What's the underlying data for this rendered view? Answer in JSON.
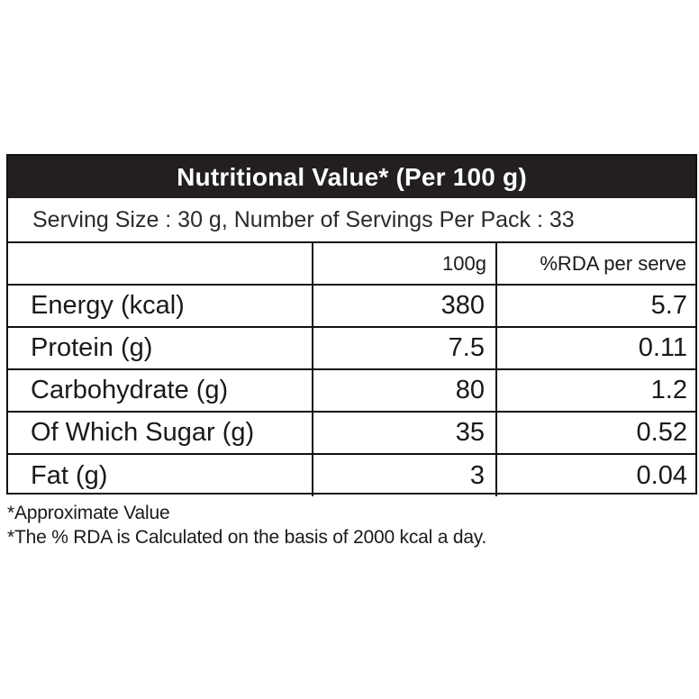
{
  "panel": {
    "title": "Nutritional Value* (Per 100 g)",
    "serving_line": "Serving Size :  30 g, Number of Servings Per Pack : 33"
  },
  "table": {
    "headers": [
      "",
      "100g",
      "%RDA per serve"
    ],
    "rows": [
      {
        "name": "Energy (kcal)",
        "per100g": "380",
        "rda": "5.7"
      },
      {
        "name": "Protein (g)",
        "per100g": "7.5",
        "rda": "0.11"
      },
      {
        "name": "Carbohydrate (g)",
        "per100g": "80",
        "rda": "1.2"
      },
      {
        "name": "Of Which Sugar (g)",
        "per100g": "35",
        "rda": "0.52"
      },
      {
        "name": "Fat (g)",
        "per100g": "3",
        "rda": "0.04"
      }
    ]
  },
  "footnotes": [
    "*Approximate Value",
    "*The % RDA is Calculated on the basis of 2000 kcal a day."
  ],
  "colors": {
    "title_background": "#231f20",
    "title_text": "#ffffff",
    "border": "#111111"
  }
}
